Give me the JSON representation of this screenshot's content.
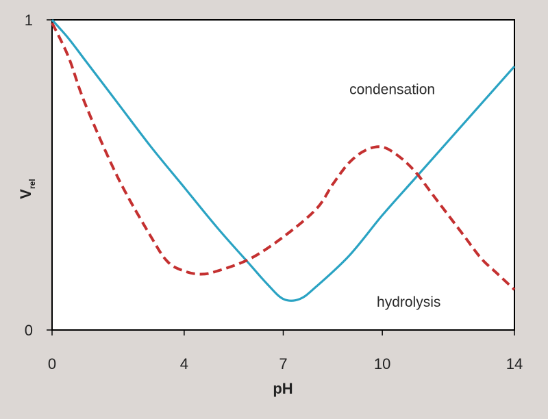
{
  "chart_data": {
    "type": "line",
    "xlabel": "pH",
    "ylabel": {
      "main": "V",
      "sub": "rel"
    },
    "xlim": [
      0,
      14
    ],
    "ylim": [
      0,
      1
    ],
    "x_ticks": [
      {
        "value": 0,
        "label": "0"
      },
      {
        "value": 4,
        "label": "4"
      },
      {
        "value": 7,
        "label": "7"
      },
      {
        "value": 10,
        "label": "10"
      },
      {
        "value": 14,
        "label": "14"
      }
    ],
    "y_ticks": [
      {
        "value": 0,
        "label": "0"
      },
      {
        "value": 1,
        "label": "1"
      }
    ],
    "grid": false,
    "series": [
      {
        "name": "hydrolysis",
        "color": "#2aa3c3",
        "style": "solid",
        "points": [
          [
            0,
            1.0
          ],
          [
            0.5,
            0.94
          ],
          [
            1,
            0.87
          ],
          [
            2,
            0.73
          ],
          [
            3,
            0.59
          ],
          [
            4,
            0.46
          ],
          [
            5,
            0.33
          ],
          [
            6,
            0.21
          ],
          [
            6.5,
            0.15
          ],
          [
            7,
            0.1
          ],
          [
            7.5,
            0.1
          ],
          [
            8,
            0.14
          ],
          [
            9,
            0.24
          ],
          [
            10,
            0.37
          ],
          [
            11,
            0.49
          ],
          [
            12,
            0.61
          ],
          [
            13,
            0.73
          ],
          [
            14,
            0.85
          ]
        ]
      },
      {
        "name": "condensation",
        "color": "#c43030",
        "style": "dashed",
        "points": [
          [
            0,
            0.99
          ],
          [
            0.5,
            0.88
          ],
          [
            1,
            0.73
          ],
          [
            2,
            0.49
          ],
          [
            3,
            0.3
          ],
          [
            3.5,
            0.22
          ],
          [
            4,
            0.19
          ],
          [
            4.5,
            0.18
          ],
          [
            5,
            0.19
          ],
          [
            6,
            0.23
          ],
          [
            7,
            0.3
          ],
          [
            8,
            0.39
          ],
          [
            8.5,
            0.47
          ],
          [
            9,
            0.54
          ],
          [
            9.5,
            0.58
          ],
          [
            10,
            0.59
          ],
          [
            10.5,
            0.56
          ],
          [
            11,
            0.51
          ],
          [
            11.5,
            0.44
          ],
          [
            12,
            0.37
          ],
          [
            12.5,
            0.3
          ],
          [
            13,
            0.23
          ],
          [
            13.5,
            0.18
          ],
          [
            14,
            0.13
          ]
        ]
      }
    ],
    "annotations": [
      {
        "text": "condensation",
        "x": 10.3,
        "y": 0.76
      },
      {
        "text": "hydrolysis",
        "x": 10.8,
        "y": 0.075
      }
    ]
  }
}
